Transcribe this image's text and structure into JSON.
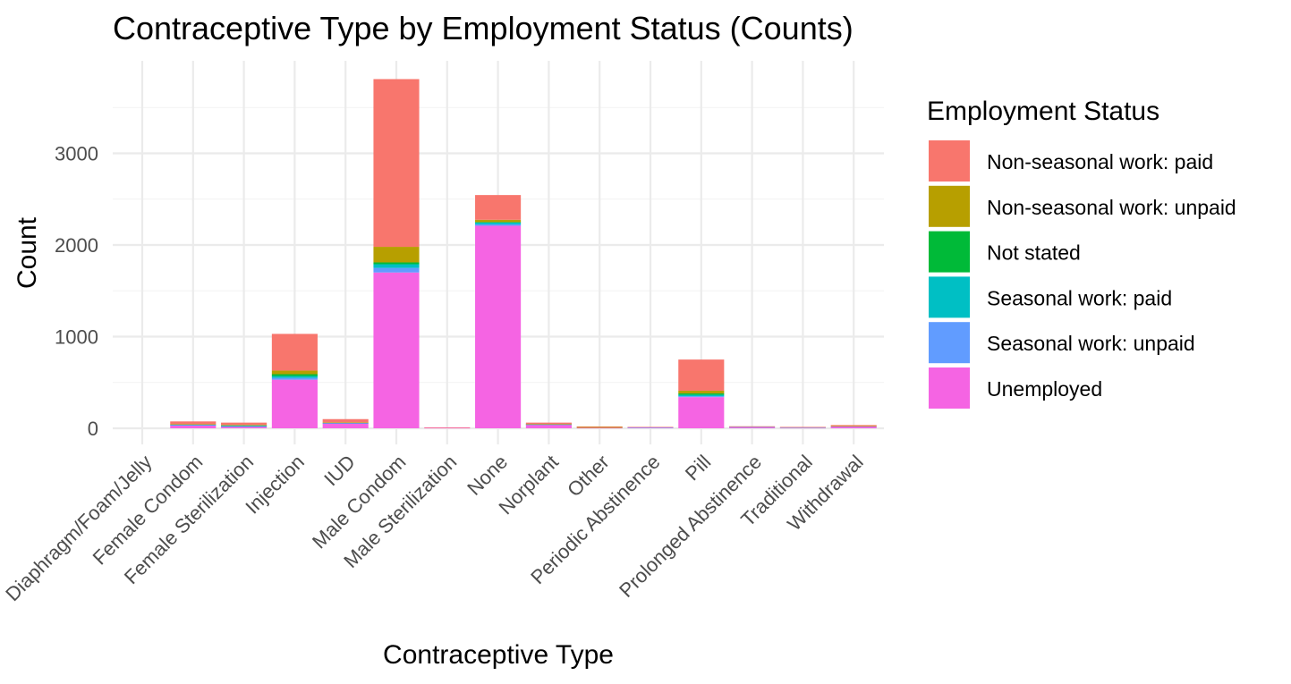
{
  "chart_data": {
    "type": "bar",
    "stacked": true,
    "title": "Contraceptive Type by Employment Status (Counts)",
    "xlabel": "Contraceptive Type",
    "ylabel": "Count",
    "ylim": [
      -180,
      3900
    ],
    "yticks": [
      0,
      1000,
      2000,
      3000
    ],
    "grid": true,
    "legend_position": "right",
    "legend_title": "Employment Status",
    "categories": [
      "Diaphragm/Foam/Jelly",
      "Female Condom",
      "Female Sterilization",
      "Injection",
      "IUD",
      "Male Condom",
      "Male Sterilization",
      "None",
      "Norplant",
      "Other",
      "Periodic Abstinence",
      "Pill",
      "Prolonged Abstinence",
      "Traditional",
      "Withdrawal"
    ],
    "series": [
      {
        "name": "Unemployed",
        "color": "#F564E3",
        "values": [
          0,
          30,
          15,
          530,
          55,
          1700,
          5,
          2210,
          40,
          5,
          8,
          340,
          12,
          5,
          20
        ]
      },
      {
        "name": "Seasonal work: unpaid",
        "color": "#619CFF",
        "values": [
          0,
          8,
          12,
          20,
          3,
          50,
          0,
          15,
          2,
          0,
          2,
          10,
          2,
          2,
          2
        ]
      },
      {
        "name": "Seasonal work: paid",
        "color": "#00BFC4",
        "values": [
          0,
          2,
          3,
          20,
          2,
          40,
          0,
          20,
          2,
          0,
          0,
          15,
          0,
          0,
          0
        ]
      },
      {
        "name": "Not stated",
        "color": "#00BA38",
        "values": [
          0,
          0,
          2,
          20,
          0,
          20,
          0,
          5,
          0,
          0,
          0,
          15,
          0,
          0,
          0
        ]
      },
      {
        "name": "Non-seasonal work: unpaid",
        "color": "#B79F00",
        "values": [
          0,
          5,
          5,
          40,
          5,
          170,
          0,
          25,
          3,
          10,
          0,
          30,
          0,
          0,
          3
        ]
      },
      {
        "name": "Non-seasonal work: paid",
        "color": "#F8766D",
        "values": [
          0,
          30,
          25,
          400,
          35,
          1830,
          5,
          270,
          15,
          5,
          5,
          340,
          8,
          8,
          10
        ]
      }
    ],
    "legend_order": [
      "Non-seasonal work: paid",
      "Non-seasonal work: unpaid",
      "Not stated",
      "Seasonal work: paid",
      "Seasonal work: unpaid",
      "Unemployed"
    ]
  }
}
